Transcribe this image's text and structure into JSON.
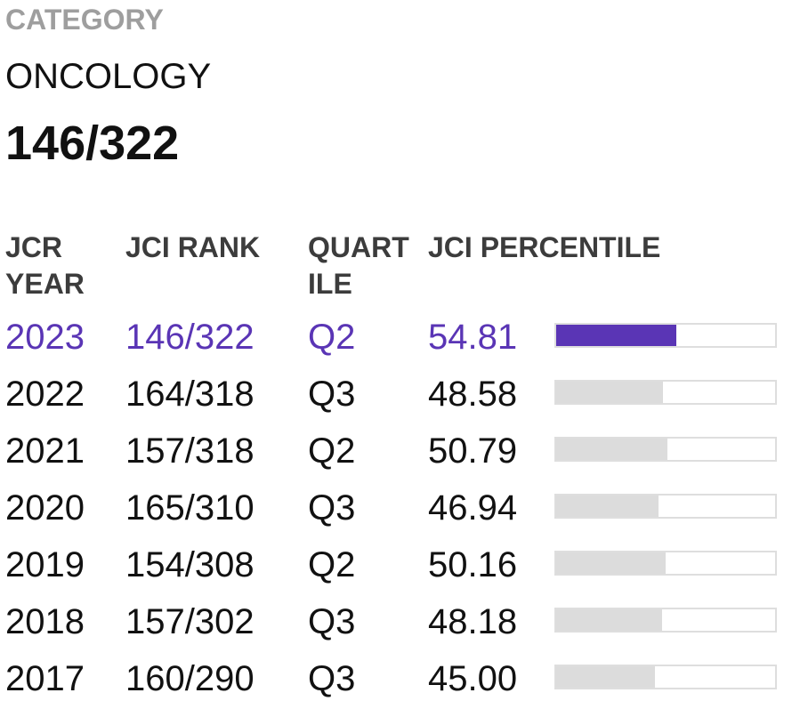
{
  "category": {
    "label": "CATEGORY",
    "name": "ONCOLOGY",
    "rank": "146/322"
  },
  "table": {
    "headers": {
      "year": "JCR YEAR",
      "rank": "JCI RANK",
      "quartile": "QUART ILE",
      "percentile": "JCI PERCENTILE"
    },
    "rows": [
      {
        "year": "2023",
        "rank": "146/322",
        "quartile": "Q2",
        "percentile": "54.81",
        "percentile_value": 54.81,
        "highlight": true
      },
      {
        "year": "2022",
        "rank": "164/318",
        "quartile": "Q3",
        "percentile": "48.58",
        "percentile_value": 48.58,
        "highlight": false
      },
      {
        "year": "2021",
        "rank": "157/318",
        "quartile": "Q2",
        "percentile": "50.79",
        "percentile_value": 50.79,
        "highlight": false
      },
      {
        "year": "2020",
        "rank": "165/310",
        "quartile": "Q3",
        "percentile": "46.94",
        "percentile_value": 46.94,
        "highlight": false
      },
      {
        "year": "2019",
        "rank": "154/308",
        "quartile": "Q2",
        "percentile": "50.16",
        "percentile_value": 50.16,
        "highlight": false
      },
      {
        "year": "2018",
        "rank": "157/302",
        "quartile": "Q3",
        "percentile": "48.18",
        "percentile_value": 48.18,
        "highlight": false
      },
      {
        "year": "2017",
        "rank": "160/290",
        "quartile": "Q3",
        "percentile": "45.00",
        "percentile_value": 45.0,
        "highlight": false
      }
    ]
  },
  "colors": {
    "highlight": "#5a35b5",
    "bar_fill": "#dcdcdc",
    "bar_border": "#dedede",
    "category_label": "#9e9e9e"
  }
}
